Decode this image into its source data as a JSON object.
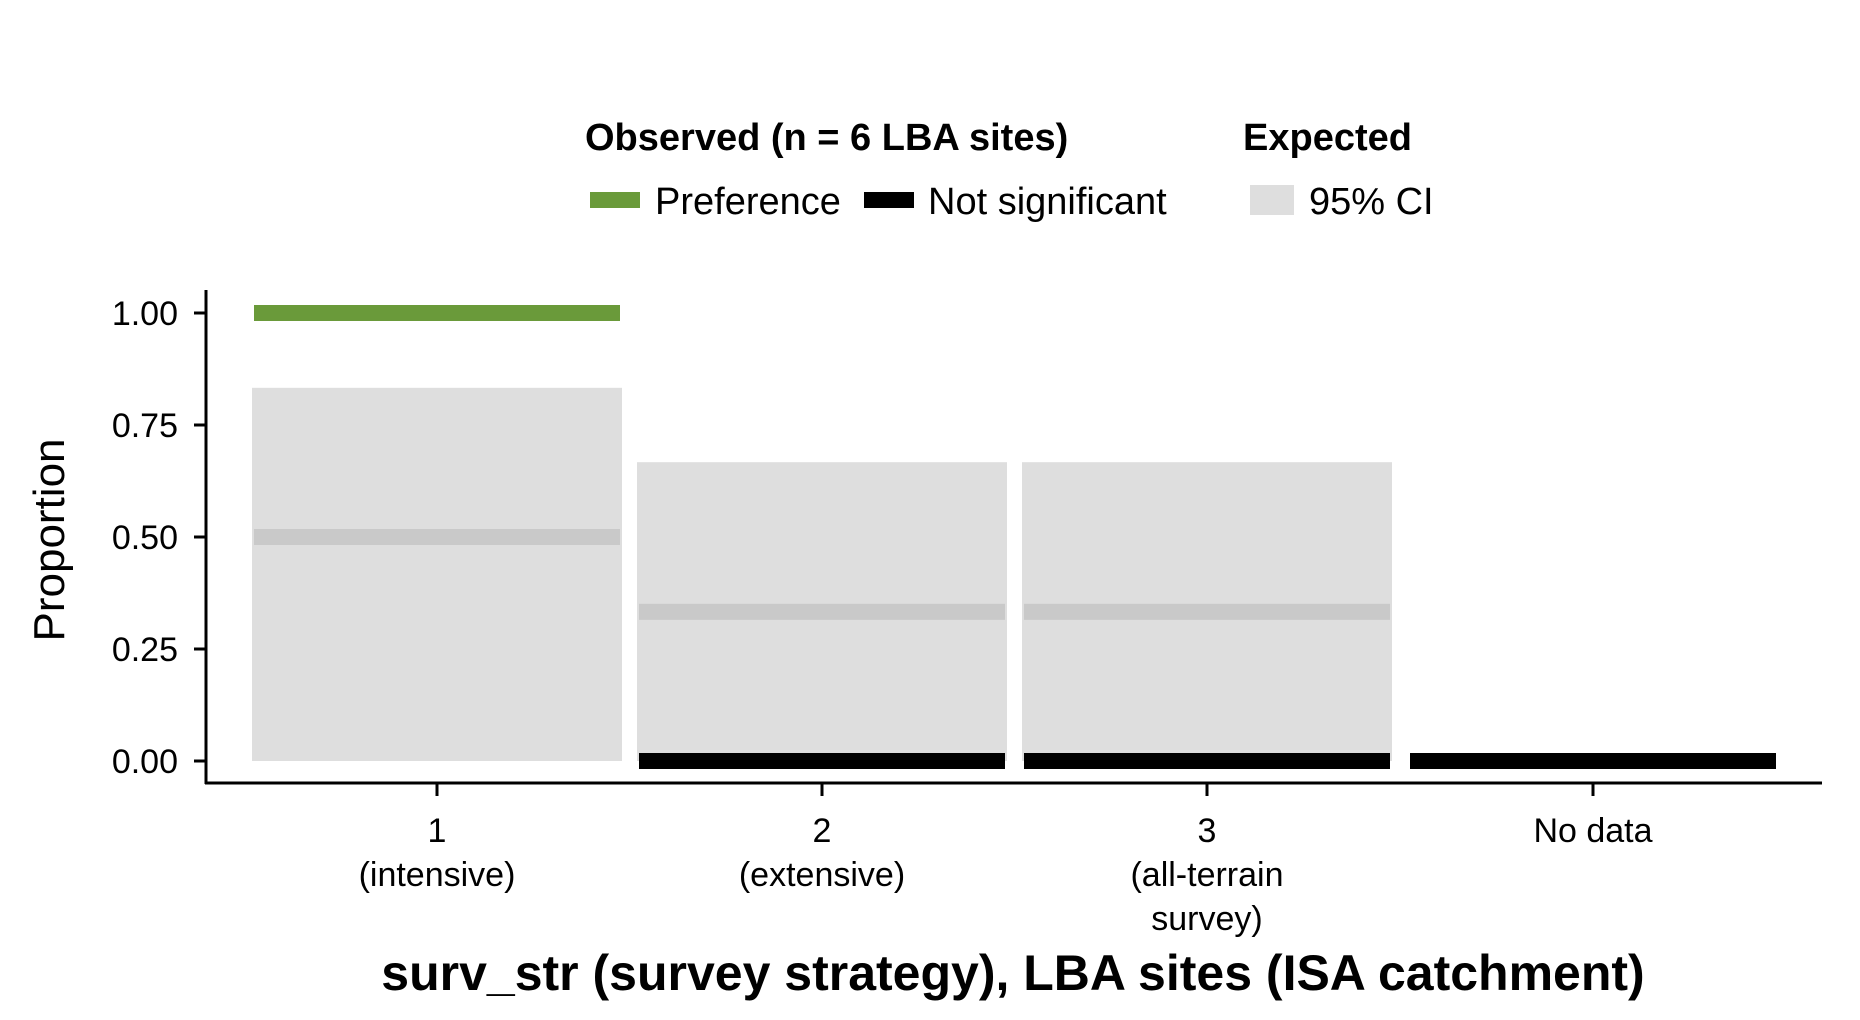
{
  "legend": {
    "observed_title": "Observed (n = 6 LBA sites)",
    "expected_title": "Expected",
    "items": [
      {
        "label": "Preference",
        "color": "#6a9a3a"
      },
      {
        "label": "Not significant",
        "color": "#000000"
      },
      {
        "label": "95% CI",
        "color": "#dedede"
      }
    ]
  },
  "chart_data": {
    "type": "bar",
    "xlabel": "surv_str (survey strategy), LBA sites (ISA catchment)",
    "ylabel": "Proportion",
    "ylim": [
      0,
      1
    ],
    "yticks": [
      "0.00",
      "0.25",
      "0.50",
      "0.75",
      "1.00"
    ],
    "ytick_values": [
      0,
      0.25,
      0.5,
      0.75,
      1.0
    ],
    "categories": [
      {
        "line1": "1",
        "line2": "(intensive)",
        "line3": ""
      },
      {
        "line1": "2",
        "line2": "(extensive)",
        "line3": ""
      },
      {
        "line1": "3",
        "line2": "(all-terrain",
        "line3": "survey)"
      },
      {
        "line1": "No data",
        "line2": "",
        "line3": ""
      }
    ],
    "expected_ci": [
      {
        "low": 0.0,
        "high": 0.833
      },
      {
        "low": 0.0,
        "high": 0.667
      },
      {
        "low": 0.0,
        "high": 0.667
      },
      null
    ],
    "expected": [
      0.5,
      0.333,
      0.333,
      null
    ],
    "observed": [
      {
        "value": 1.0,
        "status": "Preference"
      },
      {
        "value": 0.0,
        "status": "Not significant"
      },
      {
        "value": 0.0,
        "status": "Not significant"
      },
      {
        "value": 0.0,
        "status": "Not significant"
      }
    ],
    "colors": {
      "preference": "#6a9a3a",
      "not_significant": "#000000",
      "ci": "#dedede",
      "expected_line": "#c9c9c9"
    }
  }
}
